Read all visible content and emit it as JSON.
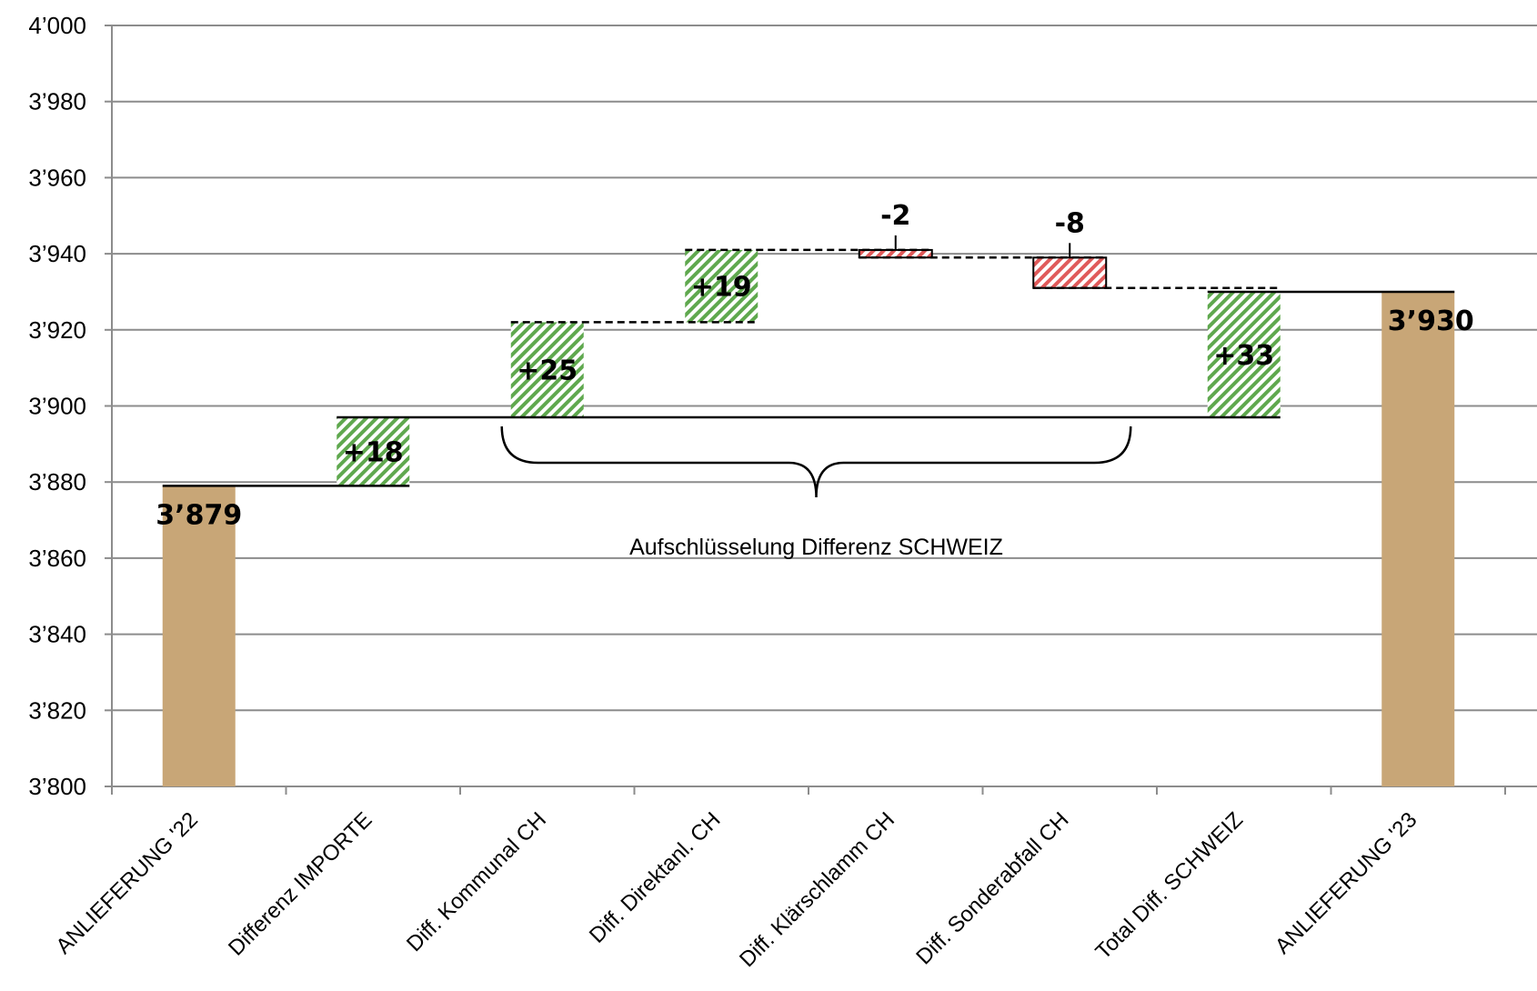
{
  "chart_data": {
    "type": "waterfall",
    "title": "",
    "xlabel": "",
    "ylabel": "",
    "ylim": [
      3800,
      4000
    ],
    "yticks": [
      3800,
      3820,
      3840,
      3860,
      3880,
      3900,
      3920,
      3940,
      3960,
      3980,
      4000
    ],
    "ytick_labels": [
      "3’800",
      "3’820",
      "3’840",
      "3’860",
      "3’880",
      "3’900",
      "3’920",
      "3’940",
      "3’960",
      "3’980",
      "4’000"
    ],
    "grid": true,
    "categories": [
      "ANLIEFERUNG '22",
      "Differenz IMPORTE",
      "Diff. Kommunal CH",
      "Diff. Direktanl. CH",
      "Diff. Klärschlamm CH",
      "Diff. Sonderabfall CH",
      "Total Diff. SCHWEIZ",
      "ANLIEFERUNG '23"
    ],
    "bars": [
      {
        "kind": "total",
        "value": 3879,
        "label": "3’879",
        "color": "#c8a677"
      },
      {
        "kind": "delta",
        "start": 3879,
        "value": 18,
        "label": "+18",
        "color": "#5fa84e"
      },
      {
        "kind": "delta",
        "start": 3897,
        "value": 25,
        "label": "+25",
        "color": "#5fa84e"
      },
      {
        "kind": "delta",
        "start": 3922,
        "value": 19,
        "label": "+19",
        "color": "#5fa84e"
      },
      {
        "kind": "delta",
        "start": 3941,
        "value": -2,
        "label": "-2",
        "color": "#e05a5a"
      },
      {
        "kind": "delta",
        "start": 3939,
        "value": -8,
        "label": "-8",
        "color": "#e05a5a"
      },
      {
        "kind": "delta",
        "start": 3897,
        "value": 33,
        "label": "+33",
        "color": "#5fa84e"
      },
      {
        "kind": "total",
        "value": 3930,
        "label": "3’930",
        "color": "#c8a677"
      }
    ],
    "annotation": {
      "text": "Aufschlüsselung  Differenz  SCHWEIZ",
      "from_category": 2,
      "to_category": 5
    }
  }
}
